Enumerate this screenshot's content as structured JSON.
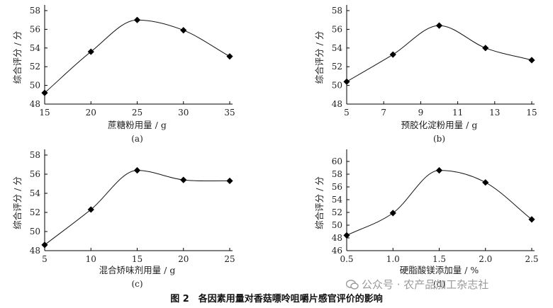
{
  "chart_data": [
    {
      "type": "line",
      "panel_label": "(a)",
      "xlabel": "蔗糖粉用量 / g",
      "ylabel": "综合评分 / 分",
      "x": [
        15,
        20,
        25,
        30,
        35
      ],
      "y": [
        49.2,
        53.6,
        57.0,
        55.9,
        53.1
      ],
      "xticks": [
        15,
        20,
        25,
        30,
        35
      ],
      "yticks": [
        48,
        50,
        52,
        54,
        56,
        58
      ],
      "xlim": [
        15,
        35
      ],
      "ylim": [
        48,
        58
      ],
      "marker": "diamond",
      "line": "smooth"
    },
    {
      "type": "line",
      "panel_label": "(b)",
      "xlabel": "预胶化淀粉用量 / g",
      "ylabel": "综合评分 / 分",
      "x": [
        5,
        7.5,
        10,
        12.5,
        15
      ],
      "y": [
        50.4,
        53.3,
        56.4,
        54.0,
        52.7
      ],
      "xticks": [
        5,
        7,
        9,
        11,
        13,
        15
      ],
      "yticks": [
        48,
        50,
        52,
        54,
        56,
        58
      ],
      "xlim": [
        5,
        15
      ],
      "ylim": [
        48,
        58
      ],
      "marker": "diamond",
      "line": "smooth"
    },
    {
      "type": "line",
      "panel_label": "(c)",
      "xlabel": "混合矫味剂用量 / g",
      "ylabel": "综合评分 / 分",
      "x": [
        5,
        10,
        15,
        20,
        25
      ],
      "y": [
        48.6,
        52.3,
        56.4,
        55.4,
        55.3
      ],
      "xticks": [
        5,
        10,
        15,
        20,
        25
      ],
      "yticks": [
        48,
        50,
        52,
        54,
        56,
        58
      ],
      "xlim": [
        5,
        25
      ],
      "ylim": [
        48,
        58
      ],
      "marker": "diamond",
      "line": "smooth"
    },
    {
      "type": "line",
      "panel_label": "(d)",
      "xlabel": "硬脂酸镁添加量 / %",
      "ylabel": "综合评分 / 分",
      "x": [
        0.5,
        1.0,
        1.5,
        2.0,
        2.5
      ],
      "y": [
        48.4,
        51.9,
        58.6,
        56.7,
        50.9
      ],
      "xticks": [
        "0.5",
        "1.0",
        "1.5",
        "2.0",
        "2.5"
      ],
      "yticks": [
        46,
        48,
        50,
        52,
        54,
        56,
        58,
        60
      ],
      "xlim": [
        0.5,
        2.5
      ],
      "ylim": [
        46,
        61
      ],
      "marker": "diamond",
      "line": "smooth"
    }
  ],
  "caption": "图 2　各因素用量对香菇嘌呤咀嚼片感官评价的影响",
  "watermark": "公众号 · 农产品加工杂志社",
  "colors": {
    "line": "#111111",
    "marker": "#000000",
    "axis": "#000000",
    "text": "#222222",
    "watermark": "#9a9a9a"
  }
}
